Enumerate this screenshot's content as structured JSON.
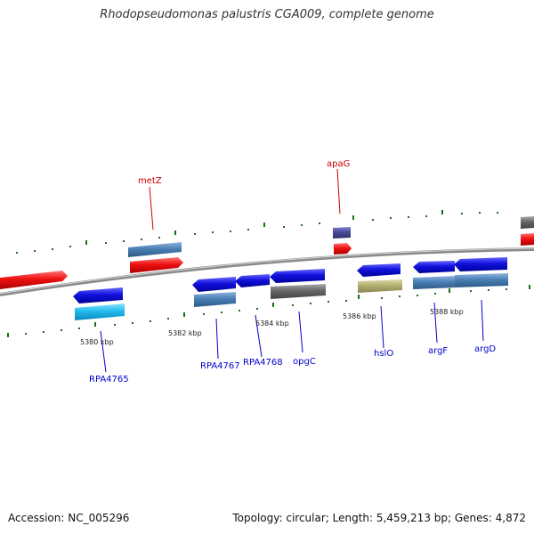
{
  "title": "Rhodopseudomonas palustris CGA009, complete genome",
  "footer": {
    "accession": "Accession: NC_005296",
    "summary": "Topology: circular; Length: 5,459,213 bp; Genes: 4,872"
  },
  "kbp_labels": [
    "5380 kbp",
    "5382 kbp",
    "5384 kbp",
    "5386 kbp",
    "5388 kbp"
  ],
  "gene_labels_top": [
    "metZ",
    "apaG"
  ],
  "gene_labels_bottom": [
    "RPA4765",
    "RPA4767",
    "RPA4768",
    "opgC",
    "hslO",
    "argF",
    "argD"
  ],
  "colors": {
    "forward_cds": "#ee1111",
    "reverse_cds": "#1111dd",
    "steelblue_feature": "#4a7fb5",
    "gray_feature": "#666666",
    "cyan_feature": "#22bbee",
    "khaki_feature": "#b5b070",
    "purple_feature": "#4a4a99",
    "top_label": "#cc0000",
    "bottom_label": "#0000cc",
    "backbone": "#888888",
    "tick": "#1a6e1a"
  }
}
